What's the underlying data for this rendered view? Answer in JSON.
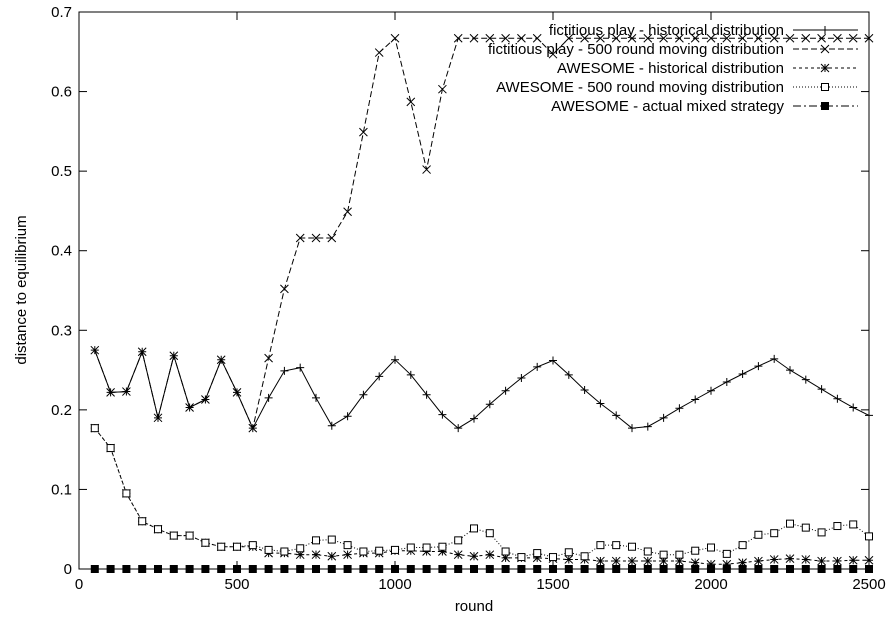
{
  "chart_data": {
    "type": "line",
    "xlabel": "round",
    "ylabel": "distance to equilibrium",
    "xlim": [
      0,
      2500
    ],
    "ylim": [
      0,
      0.7
    ],
    "xticks": [
      0,
      500,
      1000,
      1500,
      2000,
      2500
    ],
    "yticks": [
      0,
      0.1,
      0.2,
      0.3,
      0.4,
      0.5,
      0.6,
      0.7
    ],
    "xtick_labels": [
      "0",
      "500",
      "1000",
      "1500",
      "2000",
      "2500"
    ],
    "ytick_labels": [
      "0",
      "0.1",
      "0.2",
      "0.3",
      "0.4",
      "0.5",
      "0.6",
      "0.7"
    ],
    "grid": false,
    "legend_position": "top-right",
    "series": [
      {
        "name": "fictitious play - historical distribution",
        "marker": "plus",
        "dash": "",
        "x": [
          50,
          100,
          150,
          200,
          250,
          300,
          350,
          400,
          450,
          500,
          550,
          600,
          650,
          700,
          750,
          800,
          850,
          900,
          950,
          1000,
          1050,
          1100,
          1150,
          1200,
          1250,
          1300,
          1350,
          1400,
          1450,
          1500,
          1550,
          1600,
          1650,
          1700,
          1750,
          1800,
          1850,
          1900,
          1950,
          2000,
          2050,
          2100,
          2150,
          2200,
          2250,
          2300,
          2350,
          2400,
          2450,
          2500
        ],
        "y": [
          0.275,
          0.222,
          0.223,
          0.273,
          0.19,
          0.268,
          0.203,
          0.213,
          0.263,
          0.222,
          0.177,
          0.215,
          0.249,
          0.253,
          0.215,
          0.18,
          0.192,
          0.219,
          0.242,
          0.263,
          0.244,
          0.219,
          0.194,
          0.177,
          0.189,
          0.207,
          0.224,
          0.24,
          0.254,
          0.262,
          0.244,
          0.225,
          0.208,
          0.193,
          0.177,
          0.179,
          0.19,
          0.202,
          0.213,
          0.224,
          0.235,
          0.245,
          0.255,
          0.264,
          0.25,
          0.238,
          0.226,
          0.214,
          0.203,
          0.193
        ]
      },
      {
        "name": "fictitious play - 500 round moving distribution",
        "marker": "cross",
        "dash": "6,3",
        "x": [
          50,
          100,
          150,
          200,
          250,
          300,
          350,
          400,
          450,
          500,
          550,
          600,
          650,
          700,
          750,
          800,
          850,
          900,
          950,
          1000,
          1050,
          1100,
          1150,
          1200,
          1250,
          1300,
          1350,
          1400,
          1450,
          1500,
          1550,
          1600,
          1650,
          1700,
          1750,
          1800,
          1850,
          1900,
          1950,
          2000,
          2050,
          2100,
          2150,
          2200,
          2250,
          2300,
          2350,
          2400,
          2450,
          2500
        ],
        "y": [
          0.275,
          0.222,
          0.223,
          0.273,
          0.19,
          0.268,
          0.203,
          0.213,
          0.263,
          0.222,
          0.177,
          0.265,
          0.352,
          0.416,
          0.416,
          0.416,
          0.449,
          0.549,
          0.649,
          0.667,
          0.587,
          0.502,
          0.603,
          0.667,
          0.667,
          0.667,
          0.667,
          0.667,
          0.667,
          0.647,
          0.667,
          0.667,
          0.667,
          0.667,
          0.667,
          0.667,
          0.667,
          0.667,
          0.667,
          0.667,
          0.667,
          0.667,
          0.667,
          0.667,
          0.667,
          0.667,
          0.667,
          0.667,
          0.667,
          0.667
        ]
      },
      {
        "name": "AWESOME - historical distribution",
        "marker": "star",
        "dash": "3,3",
        "x": [
          50,
          100,
          150,
          200,
          250,
          300,
          350,
          400,
          450,
          500,
          550,
          600,
          650,
          700,
          750,
          800,
          850,
          900,
          950,
          1000,
          1050,
          1100,
          1150,
          1200,
          1250,
          1300,
          1350,
          1400,
          1450,
          1500,
          1550,
          1600,
          1650,
          1700,
          1750,
          1800,
          1850,
          1900,
          1950,
          2000,
          2050,
          2100,
          2150,
          2200,
          2250,
          2300,
          2350,
          2400,
          2450,
          2500
        ],
        "y": [
          0.177,
          0.152,
          0.095,
          0.06,
          0.05,
          0.042,
          0.042,
          0.033,
          0.028,
          0.028,
          0.028,
          0.02,
          0.02,
          0.018,
          0.018,
          0.016,
          0.018,
          0.02,
          0.02,
          0.023,
          0.023,
          0.022,
          0.022,
          0.018,
          0.016,
          0.018,
          0.014,
          0.014,
          0.014,
          0.013,
          0.012,
          0.012,
          0.01,
          0.01,
          0.01,
          0.01,
          0.01,
          0.01,
          0.008,
          0.006,
          0.006,
          0.008,
          0.01,
          0.012,
          0.013,
          0.012,
          0.01,
          0.01,
          0.011,
          0.011
        ]
      },
      {
        "name": "AWESOME - 500 round moving distribution",
        "marker": "square-open",
        "dash": "1,2",
        "x": [
          50,
          100,
          150,
          200,
          250,
          300,
          350,
          400,
          450,
          500,
          550,
          600,
          650,
          700,
          750,
          800,
          850,
          900,
          950,
          1000,
          1050,
          1100,
          1150,
          1200,
          1250,
          1300,
          1350,
          1400,
          1450,
          1500,
          1550,
          1600,
          1650,
          1700,
          1750,
          1800,
          1850,
          1900,
          1950,
          2000,
          2050,
          2100,
          2150,
          2200,
          2250,
          2300,
          2350,
          2400,
          2450,
          2500
        ],
        "y": [
          0.177,
          0.152,
          0.095,
          0.06,
          0.05,
          0.042,
          0.042,
          0.033,
          0.028,
          0.028,
          0.03,
          0.024,
          0.022,
          0.026,
          0.036,
          0.037,
          0.03,
          0.022,
          0.023,
          0.024,
          0.027,
          0.027,
          0.028,
          0.036,
          0.051,
          0.045,
          0.022,
          0.015,
          0.02,
          0.015,
          0.021,
          0.016,
          0.03,
          0.03,
          0.028,
          0.022,
          0.018,
          0.018,
          0.023,
          0.027,
          0.019,
          0.03,
          0.043,
          0.045,
          0.057,
          0.052,
          0.046,
          0.054,
          0.056,
          0.041
        ]
      },
      {
        "name": "AWESOME - actual mixed strategy",
        "marker": "square-filled",
        "dash": "8,3,2,3",
        "x": [
          50,
          100,
          150,
          200,
          250,
          300,
          350,
          400,
          450,
          500,
          550,
          600,
          650,
          700,
          750,
          800,
          850,
          900,
          950,
          1000,
          1050,
          1100,
          1150,
          1200,
          1250,
          1300,
          1350,
          1400,
          1450,
          1500,
          1550,
          1600,
          1650,
          1700,
          1750,
          1800,
          1850,
          1900,
          1950,
          2000,
          2050,
          2100,
          2150,
          2200,
          2250,
          2300,
          2350,
          2400,
          2450,
          2500
        ],
        "y": [
          0,
          0,
          0,
          0,
          0,
          0,
          0,
          0,
          0,
          0,
          0,
          0,
          0,
          0,
          0,
          0,
          0,
          0,
          0,
          0,
          0,
          0,
          0,
          0,
          0,
          0,
          0,
          0,
          0,
          0,
          0,
          0,
          0,
          0,
          0,
          0,
          0,
          0,
          0,
          0,
          0,
          0,
          0,
          0,
          0,
          0,
          0,
          0,
          0,
          0
        ]
      }
    ]
  }
}
